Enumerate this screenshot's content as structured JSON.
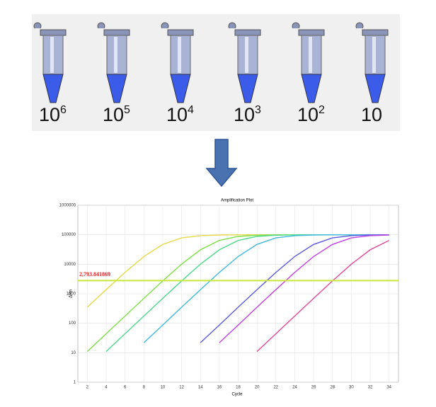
{
  "tubes": {
    "labels": [
      {
        "base": "10",
        "exp": "6"
      },
      {
        "base": "10",
        "exp": "5"
      },
      {
        "base": "10",
        "exp": "4"
      },
      {
        "base": "10",
        "exp": "3"
      },
      {
        "base": "10",
        "exp": "2"
      },
      {
        "base": "10"
      }
    ]
  },
  "chart_data": {
    "type": "line",
    "title": "Amplification Plot",
    "x_label": "Cycle",
    "y_label": "ΔRn",
    "log_y": true,
    "grid": true,
    "xlim": [
      1,
      35
    ],
    "xticks": [
      2,
      4,
      6,
      8,
      10,
      12,
      14,
      16,
      18,
      20,
      22,
      24,
      26,
      28,
      30,
      32,
      34
    ],
    "ylim": [
      1,
      1000000
    ],
    "yticks": [
      1,
      10,
      100,
      1000,
      10000,
      100000,
      1000000
    ],
    "threshold": {
      "value": 2793.841869,
      "label": "2,793.841869",
      "color": "#c8e63c",
      "label_color": "#e02020"
    },
    "x": [
      2,
      4,
      6,
      8,
      10,
      12,
      14,
      16,
      18,
      20,
      22,
      24,
      26,
      28,
      30,
      32,
      34
    ],
    "series": [
      {
        "color": "#e6d84a",
        "values": [
          349,
          1378,
          5291,
          18263,
          47194,
          78140,
          93458,
          98290,
          99560,
          99890,
          99950,
          99970,
          99980,
          99990,
          100000,
          100000,
          100000
        ]
      },
      {
        "color": "#7ee04a",
        "values": [
          11,
          44,
          175,
          698,
          2717,
          10049,
          30886,
          64125,
          87726,
          96624,
          99134,
          99782,
          99950,
          99980,
          99990,
          100000,
          100000
        ]
      },
      {
        "color": "#4ed88a",
        "values": [
          null,
          11,
          44,
          175,
          698,
          2717,
          10049,
          30886,
          64125,
          87726,
          96624,
          99134,
          99782,
          99950,
          99980,
          99990,
          100000
        ]
      },
      {
        "color": "#40b8e0",
        "values": [
          null,
          null,
          null,
          22,
          87,
          349,
          1378,
          5291,
          18263,
          47194,
          78140,
          93458,
          98290,
          99560,
          99890,
          99950,
          99980
        ]
      },
      {
        "color": "#5a5ae0",
        "values": [
          null,
          null,
          null,
          null,
          null,
          null,
          22,
          87,
          349,
          1378,
          5291,
          18263,
          47194,
          78140,
          93458,
          98290,
          99560
        ]
      },
      {
        "color": "#c040e0",
        "values": [
          null,
          null,
          null,
          null,
          null,
          null,
          null,
          22,
          87,
          349,
          1378,
          5291,
          18263,
          47194,
          78140,
          93458,
          98290
        ]
      },
      {
        "color": "#e04898",
        "values": [
          null,
          null,
          null,
          null,
          null,
          null,
          null,
          null,
          null,
          11,
          44,
          175,
          698,
          2717,
          10049,
          30886,
          64125
        ]
      }
    ]
  }
}
